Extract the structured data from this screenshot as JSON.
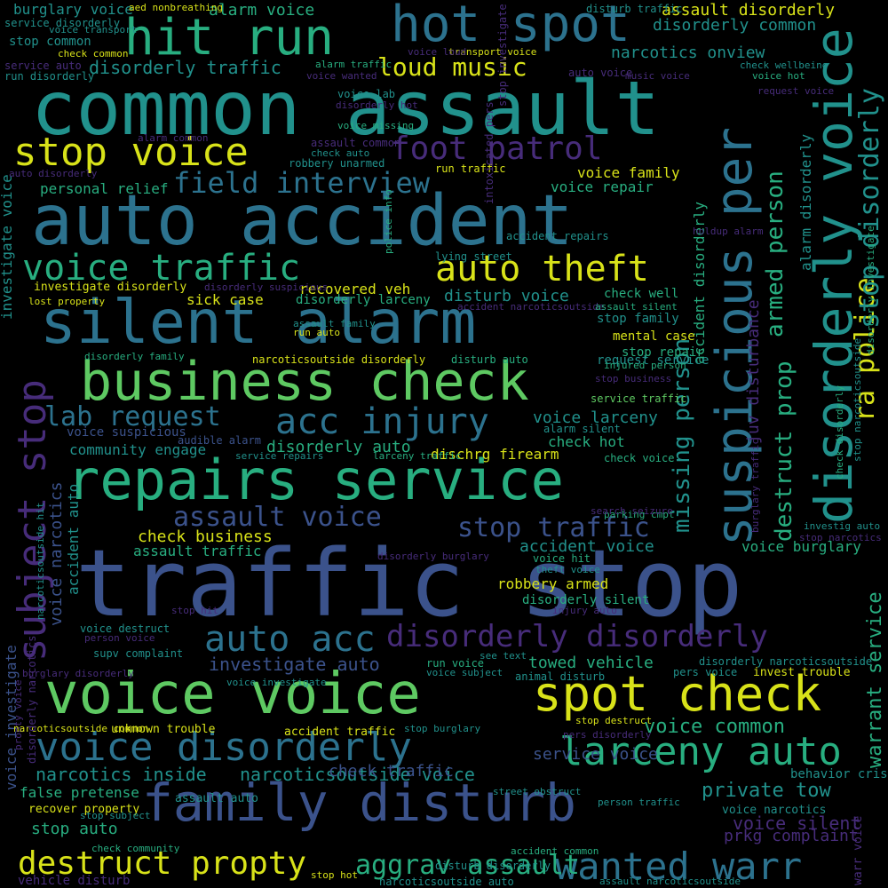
{
  "background_color": "#000000",
  "palette": {
    "purple": "#472c7a",
    "indigo": "#3b528b",
    "blue": "#2c728e",
    "teal": "#21918c",
    "green": "#28ae80",
    "lime": "#5ec962",
    "yellow": "#d8e219"
  },
  "words": [
    "traffic stop",
    "common assault",
    "auto accident",
    "silent alarm",
    "voice voice",
    "repairs service",
    "business check",
    "family disturb",
    "hit run",
    "hot spot",
    "spot check",
    "voice disorderly",
    "larceny auto",
    "stop voice",
    "auto acc",
    "voice traffic",
    "auto theft",
    "acc injury",
    "disorderly disorderly",
    "foot patrol",
    "field interview",
    "wanted warr",
    "destruct propty",
    "assault voice",
    "stop traffic",
    "lab request",
    "loud music",
    "aggrav assault",
    "suspicious per",
    "disorderly voice",
    "subject stop",
    "ra police",
    "stop disorderly",
    "destruct prop",
    "armed person",
    "missing person",
    "warrant service",
    "private tow",
    "voice common",
    "narcotics inside",
    "narcoticsoutside voice",
    "towed vehicle",
    "check business",
    "assault traffic",
    "voice family",
    "voice repair",
    "personal relief",
    "burglary voice",
    "alarm voice",
    "assault disorderly",
    "disorderly common",
    "disorderly traffic",
    "narcotics onview",
    "recovered veh",
    "sick case",
    "disorderly larceny",
    "disturb voice",
    "community engage",
    "disorderly auto",
    "dischrg firearm",
    "check hot",
    "voice larceny",
    "accident voice",
    "voice burglary",
    "robbery armed",
    "disorderly silent",
    "investigate auto",
    "service voice",
    "false pretense",
    "stop auto",
    "check traffic",
    "voice silent",
    "prkg complaint",
    "assault auto",
    "recover property",
    "unknown trouble",
    "accident traffic",
    "juv disturbance",
    "accident disorderly",
    "alarm disorderly",
    "investigate voice",
    "voice narcotics",
    "accident auto",
    "mental case",
    "stop repair",
    "request service",
    "check well",
    "stop family",
    "voice investigate",
    "voice suspicious",
    "audible alarm",
    "service repairs",
    "larceny traffic",
    "narcoticsoutside disorderly",
    "disturb auto",
    "check voice",
    "service traffic",
    "alarm silent",
    "invest trouble",
    "disorderly narcoticsoutside",
    "pers voice",
    "behavior crisis",
    "voice narcotics",
    "narcoticsoutside auto",
    "disturb disorderly",
    "accident common",
    "disturb traffic",
    "transport voice",
    "voice loud",
    "aed nonbreathing",
    "service disorderly",
    "voice transport",
    "stop common",
    "check common",
    "service auto",
    "run disorderly",
    "alarm traffic",
    "voice wanted",
    "music voice",
    "auto voice",
    "check wellbeing",
    "request voice",
    "voice hot",
    "voice lab",
    "disorderly hot",
    "voice missing",
    "alarm common",
    "assault common",
    "check auto",
    "robbery unarmed",
    "auto disorderly",
    "run traffic",
    "intoxicated pers",
    "stop investigate",
    "accident repairs",
    "lying street",
    "police info",
    "holdup alarm",
    "investigate disorderly",
    "disorderly suspicious",
    "lost property",
    "accident narcoticsoutside",
    "assault silent",
    "assault family",
    "run auto",
    "disorderly family",
    "injured person",
    "stop business",
    "parking cmpt",
    "search seizure",
    "see text",
    "run voice",
    "voice subject",
    "animal disturb",
    "stop hit",
    "voice destruct",
    "person voice",
    "supv complaint",
    "burglary disorderly",
    "disorderly burglary",
    "voice hit",
    "theft voice",
    "injury auto",
    "stop destruct",
    "pers disorderly",
    "stop burglary",
    "street obstruct",
    "person traffic",
    "check community",
    "stop subject",
    "stop hot",
    "vehicle disturb",
    "assault narcoticsoutside",
    "stop narcotics",
    "investig auto",
    "burglary traffic",
    "check disorderly",
    "stop narcoticsoutside",
    "disorderly investigate",
    "propty voice",
    "narcoticsoutside common",
    "voice investigate",
    "warr voice",
    "disorderly narcotics",
    "narcoticsoutside hit"
  ]
}
